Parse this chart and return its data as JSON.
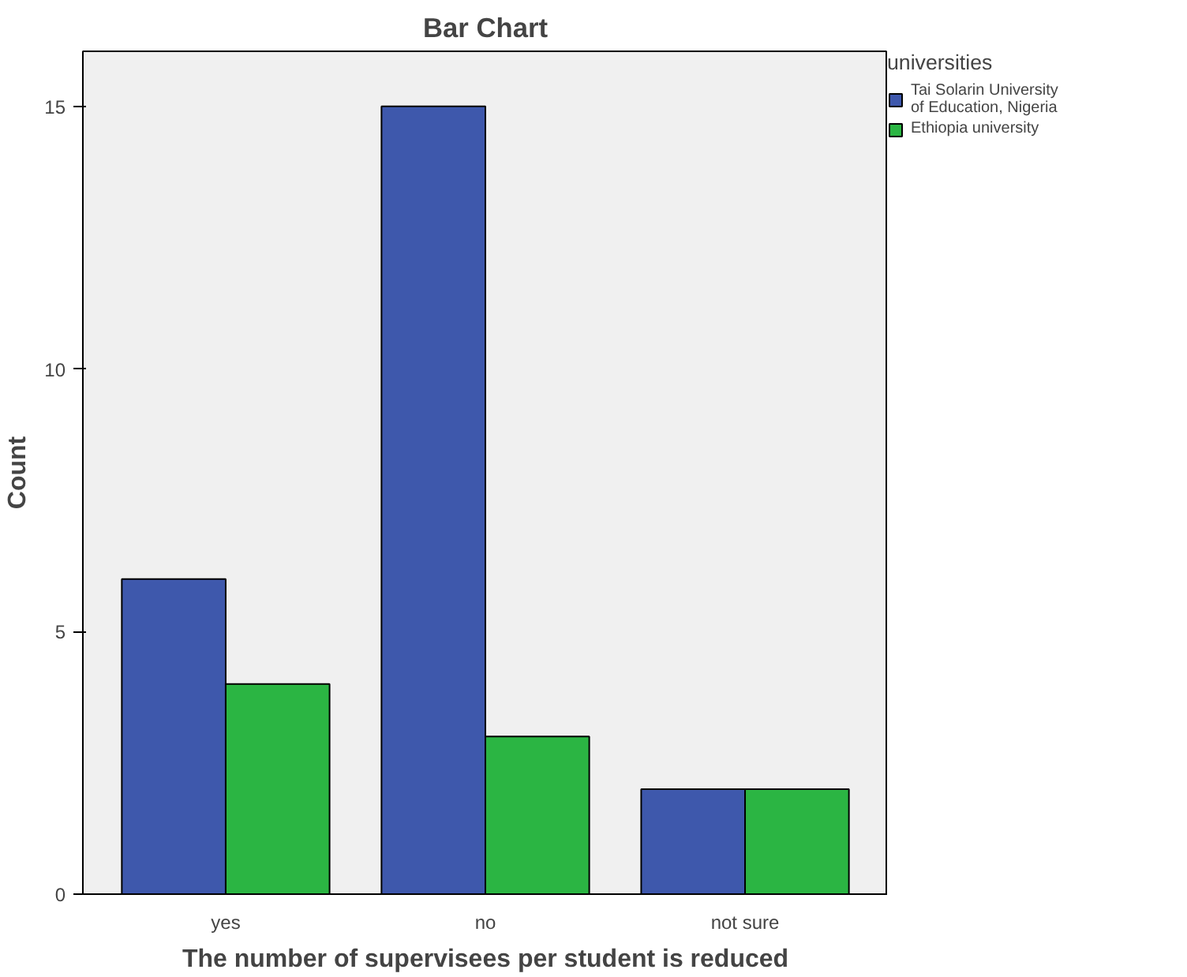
{
  "chart_data": {
    "type": "bar",
    "title": "Bar Chart",
    "xlabel": "The number of supervisees per student is reduced",
    "ylabel": "Count",
    "legend_title": "universities",
    "categories": [
      "yes",
      "no",
      "not sure"
    ],
    "series": [
      {
        "name": "Tai Solarin University of Education, Nigeria",
        "color": "#3e58ac",
        "values": [
          6,
          15,
          2
        ]
      },
      {
        "name": "Ethiopia university",
        "color": "#2bb543",
        "values": [
          4,
          3,
          2
        ]
      }
    ],
    "ylim": [
      0,
      16.05
    ],
    "yticks": [
      0,
      5,
      10,
      15
    ],
    "grid": false,
    "legend": "right"
  }
}
